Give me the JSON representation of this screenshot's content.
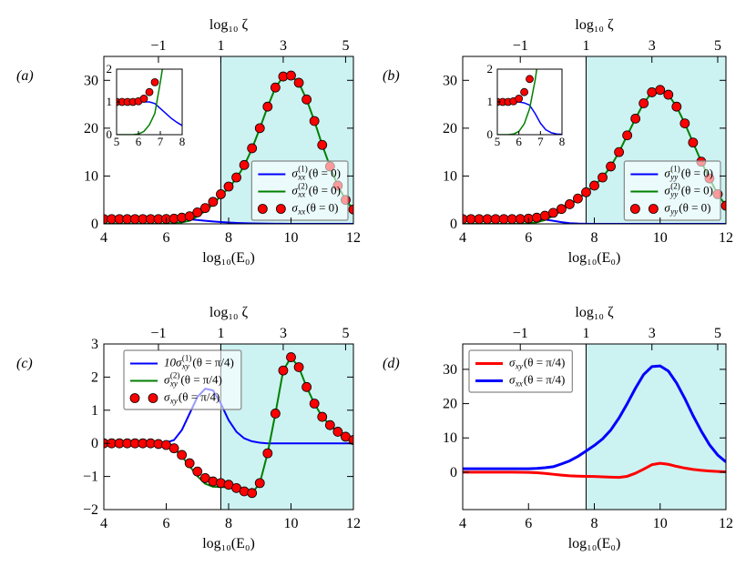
{
  "chart_data": [
    {
      "type": "line",
      "panel_label": "(a)",
      "xlabel": "log₁₀(E₀)",
      "x2label": "log₁₀ ζ",
      "x": [
        4,
        4.25,
        4.5,
        4.75,
        5,
        5.25,
        5.5,
        5.75,
        6,
        6.25,
        6.5,
        6.75,
        7,
        7.25,
        7.5,
        7.75,
        8,
        8.25,
        8.5,
        8.75,
        9,
        9.25,
        9.5,
        9.75,
        10,
        10.25,
        10.5,
        10.75,
        11,
        11.25,
        11.5,
        11.75,
        12
      ],
      "xlim": [
        4,
        12
      ],
      "xticks": [
        4,
        6,
        8,
        10,
        12
      ],
      "x2lim": [
        -2.75,
        5.25
      ],
      "x2ticks": [
        {
          "value": -1,
          "label": "−1"
        },
        1,
        3,
        5
      ],
      "ylim": [
        0,
        35
      ],
      "yticks": [
        0,
        10,
        20,
        30
      ],
      "shade": {
        "x2_from": 1,
        "color": "#cdf2f2"
      },
      "legend": "lower right",
      "inset": {
        "xlim": [
          5,
          8
        ],
        "ylim": [
          0,
          2
        ],
        "xticks": [
          5,
          6,
          7,
          8
        ],
        "yticks": [
          0,
          1,
          2
        ]
      },
      "series": [
        {
          "name": {
            "sym": "σ",
            "sub": "xx",
            "sup": "(1)",
            "arg": "(θ = 0)"
          },
          "color": "#0000ff",
          "style": "line",
          "values": [
            1,
            1,
            1,
            1,
            1,
            1,
            1,
            1,
            1,
            1,
            1,
            0.95,
            0.8,
            0.65,
            0.5,
            0.38,
            0.28,
            0.2,
            0.14,
            0.09,
            0.06,
            0.04,
            0.03,
            0.02,
            0.01,
            0.01,
            0.01,
            0.01,
            0.01,
            0,
            0,
            0,
            0
          ]
        },
        {
          "name": {
            "sym": "σ",
            "sub": "xx",
            "sup": "(2)",
            "arg": "(θ = 0)"
          },
          "color": "#008000",
          "style": "line",
          "values": [
            0,
            0,
            0,
            0,
            0,
            0,
            0,
            0,
            0.02,
            0.1,
            0.3,
            0.65,
            1.6,
            2.65,
            4.1,
            5.82,
            7.52,
            9.5,
            12.16,
            15.71,
            19.94,
            24.46,
            28.47,
            30.78,
            30.99,
            29.49,
            25.99,
            21.49,
            16.49,
            12,
            8,
            5,
            3
          ]
        },
        {
          "name": {
            "sym": "σ",
            "sub": "xx",
            "arg": "(θ = 0)"
          },
          "color": "#ff0000",
          "style": "markers",
          "values": [
            1,
            1,
            1,
            1,
            1,
            1,
            1,
            1,
            1.02,
            1.1,
            1.3,
            1.6,
            2.4,
            3.3,
            4.6,
            6.2,
            7.8,
            9.7,
            12.3,
            15.8,
            20,
            24.5,
            28.5,
            30.8,
            31,
            29.5,
            26,
            21.5,
            16.5,
            12,
            8,
            5,
            3
          ]
        }
      ]
    },
    {
      "type": "line",
      "panel_label": "(b)",
      "xlabel": "log₁₀(E₀)",
      "x2label": "log₁₀ ζ",
      "x": [
        4,
        4.25,
        4.5,
        4.75,
        5,
        5.25,
        5.5,
        5.75,
        6,
        6.25,
        6.5,
        6.75,
        7,
        7.25,
        7.5,
        7.75,
        8,
        8.25,
        8.5,
        8.75,
        9,
        9.25,
        9.5,
        9.75,
        10,
        10.25,
        10.5,
        10.75,
        11,
        11.25,
        11.5,
        11.75,
        12
      ],
      "xlim": [
        4,
        12
      ],
      "xticks": [
        4,
        6,
        8,
        10,
        12
      ],
      "x2lim": [
        -2.75,
        5.25
      ],
      "x2ticks": [
        {
          "value": -1,
          "label": "−1"
        },
        1,
        3,
        5
      ],
      "ylim": [
        0,
        35
      ],
      "yticks": [
        0,
        10,
        20,
        30
      ],
      "shade": {
        "x2_from": 1,
        "color": "#cdf2f2"
      },
      "legend": "lower right",
      "inset": {
        "xlim": [
          5,
          8
        ],
        "ylim": [
          0,
          2
        ],
        "xticks": [
          5,
          6,
          7,
          8
        ],
        "yticks": [
          0,
          1,
          2
        ]
      },
      "series": [
        {
          "name": {
            "sym": "σ",
            "sub": "yy",
            "sup": "(1)",
            "arg": "(θ = 0)"
          },
          "color": "#0000ff",
          "style": "line",
          "values": [
            1,
            1,
            1,
            1,
            1,
            1,
            1,
            1,
            1,
            0.97,
            0.9,
            0.65,
            0.35,
            0.15,
            0.06,
            0.02,
            0.01,
            0,
            0,
            0,
            0,
            0,
            0,
            0,
            0,
            0,
            0,
            0,
            0,
            0,
            0,
            0,
            0
          ]
        },
        {
          "name": {
            "sym": "σ",
            "sub": "yy",
            "sup": "(2)",
            "arg": "(θ = 0)"
          },
          "color": "#008000",
          "style": "line",
          "values": [
            0,
            0,
            0,
            0,
            0,
            0,
            0,
            0.02,
            0.1,
            0.33,
            0.8,
            1.65,
            2.75,
            3.95,
            5.24,
            6.58,
            7.99,
            9.7,
            12,
            15,
            18.5,
            22,
            25.2,
            27.5,
            28,
            27,
            24.5,
            21,
            17,
            13,
            9.5,
            6.2,
            3.8
          ]
        },
        {
          "name": {
            "sym": "σ",
            "sub": "yy",
            "arg": "(θ = 0)"
          },
          "color": "#ff0000",
          "style": "markers",
          "values": [
            1,
            1,
            1,
            1,
            1,
            1,
            1,
            1.02,
            1.1,
            1.3,
            1.7,
            2.3,
            3.1,
            4.1,
            5.3,
            6.6,
            8,
            9.7,
            12,
            15,
            18.5,
            22,
            25.2,
            27.5,
            28,
            27,
            24.5,
            21,
            17,
            13,
            9.5,
            6.2,
            3.8
          ]
        }
      ]
    },
    {
      "type": "line",
      "panel_label": "(c)",
      "xlabel": "log₁₀(E₀)",
      "x2label": "log₁₀ ζ",
      "x": [
        4,
        4.25,
        4.5,
        4.75,
        5,
        5.25,
        5.5,
        5.75,
        6,
        6.25,
        6.5,
        6.75,
        7,
        7.25,
        7.5,
        7.75,
        8,
        8.25,
        8.5,
        8.75,
        9,
        9.25,
        9.5,
        9.75,
        10,
        10.25,
        10.5,
        10.75,
        11,
        11.25,
        11.5,
        11.75,
        12
      ],
      "xlim": [
        4,
        12
      ],
      "xticks": [
        4,
        6,
        8,
        10,
        12
      ],
      "x2lim": [
        -2.75,
        5.25
      ],
      "x2ticks": [
        {
          "value": -1,
          "label": "−1"
        },
        1,
        3,
        5
      ],
      "ylim": [
        -2,
        3
      ],
      "yticks": [
        {
          "value": -2,
          "label": "−2"
        },
        {
          "value": -1,
          "label": "−1"
        },
        0,
        1,
        2,
        3
      ],
      "shade": {
        "x2_from": 1,
        "color": "#cdf2f2"
      },
      "legend": "upper left",
      "series": [
        {
          "name": {
            "sym": "10σ",
            "sub": "xy",
            "sup": "(1)",
            "arg": "(θ = π/4)"
          },
          "color": "#0000ff",
          "style": "line",
          "values": [
            0,
            0,
            0,
            0,
            0,
            0,
            0,
            0,
            0.02,
            0.1,
            0.4,
            0.9,
            1.4,
            1.65,
            1.6,
            1.2,
            0.7,
            0.35,
            0.15,
            0.06,
            0.02,
            0,
            0,
            0,
            0,
            0,
            0,
            0,
            0,
            0,
            0,
            0,
            0
          ]
        },
        {
          "name": {
            "sym": "σ",
            "sub": "xy",
            "sup": "(2)",
            "arg": "(θ = π/4)"
          },
          "color": "#008000",
          "style": "line",
          "values": [
            0,
            0,
            0,
            0,
            0,
            0,
            0,
            -0.02,
            -0.05,
            -0.16,
            -0.39,
            -0.69,
            -0.99,
            -1.22,
            -1.31,
            -1.32,
            -1.32,
            -1.39,
            -1.47,
            -1.51,
            -1.2,
            -0.3,
            0.9,
            2.2,
            2.6,
            2.3,
            1.7,
            1.2,
            0.8,
            0.55,
            0.35,
            0.2,
            0.1
          ]
        },
        {
          "name": {
            "sym": "σ",
            "sub": "xy",
            "arg": "(θ = π/4)"
          },
          "color": "#ff0000",
          "style": "markers",
          "values": [
            0,
            0,
            0,
            0,
            0,
            0,
            0,
            -0.02,
            -0.05,
            -0.15,
            -0.35,
            -0.6,
            -0.85,
            -1.05,
            -1.15,
            -1.2,
            -1.25,
            -1.35,
            -1.45,
            -1.5,
            -1.2,
            -0.3,
            0.9,
            2.2,
            2.6,
            2.3,
            1.7,
            1.2,
            0.8,
            0.55,
            0.35,
            0.2,
            0.1
          ]
        }
      ]
    },
    {
      "type": "line",
      "panel_label": "(d)",
      "xlabel": "log₁₀(E₀)",
      "x2label": "log₁₀ ζ",
      "x": [
        4,
        4.25,
        4.5,
        4.75,
        5,
        5.25,
        5.5,
        5.75,
        6,
        6.25,
        6.5,
        6.75,
        7,
        7.25,
        7.5,
        7.75,
        8,
        8.25,
        8.5,
        8.75,
        9,
        9.25,
        9.5,
        9.75,
        10,
        10.25,
        10.5,
        10.75,
        11,
        11.25,
        11.5,
        11.75,
        12
      ],
      "xlim": [
        4,
        12
      ],
      "xticks": [
        4,
        6,
        8,
        10,
        12
      ],
      "x2lim": [
        -2.75,
        5.25
      ],
      "x2ticks": [
        {
          "value": -1,
          "label": "−1"
        },
        1,
        3,
        5
      ],
      "ylim": [
        -10.9,
        37.4
      ],
      "yticks": [
        0,
        10,
        20,
        30
      ],
      "shade": {
        "x2_from": 1,
        "color": "#cdf2f2"
      },
      "legend": "upper left",
      "series": [
        {
          "name": {
            "sym": "σ",
            "sub": "xy",
            "arg": "(θ = π/4)"
          },
          "color": "#ff0000",
          "style": "line",
          "values": [
            0,
            0,
            0,
            0,
            0,
            0,
            0,
            -0.02,
            -0.05,
            -0.15,
            -0.35,
            -0.6,
            -0.85,
            -1.05,
            -1.15,
            -1.2,
            -1.25,
            -1.35,
            -1.45,
            -1.5,
            -1.2,
            -0.3,
            0.9,
            2.2,
            2.6,
            2.3,
            1.7,
            1.2,
            0.8,
            0.55,
            0.35,
            0.2,
            0.1
          ]
        },
        {
          "name": {
            "sym": "σ",
            "sub": "xx",
            "arg": "(θ = π/4)"
          },
          "color": "#0000ff",
          "style": "line",
          "values": [
            1,
            1,
            1,
            1,
            1,
            1,
            1,
            1,
            1.02,
            1.1,
            1.3,
            1.6,
            2.4,
            3.3,
            4.6,
            6.2,
            7.8,
            9.7,
            12.3,
            15.8,
            20,
            24.5,
            28.5,
            30.8,
            31,
            29.5,
            26,
            21.5,
            16.5,
            12,
            8,
            5,
            3
          ]
        }
      ]
    }
  ]
}
